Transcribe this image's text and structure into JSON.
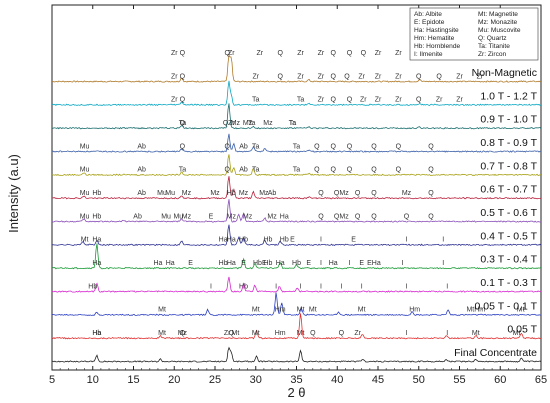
{
  "chart_data": {
    "type": "line",
    "xlabel": "2 θ",
    "ylabel": "Intensity (a.u)",
    "xlim": [
      5,
      65
    ],
    "x_ticks": [
      5,
      10,
      15,
      20,
      25,
      30,
      35,
      40,
      45,
      50,
      55,
      60,
      65
    ],
    "grid": false,
    "legend_position": "top-right",
    "legend": [
      "Ab: Albite",
      "E: Epidote",
      "Ha: Hastingsite",
      "Hm: Hematite",
      "Hb: Hornblende",
      "I: Ilmenite",
      "Mt: Magnetite",
      "Mz: Monazite",
      "Mu: Muscovite",
      "Q: Quartz",
      "Ta: Titanite",
      "Zr: Zircon"
    ],
    "series": [
      {
        "name": "Non-Magnetic",
        "color": "#b07a2a",
        "peaks": [
          [
            20.9,
            0.15
          ],
          [
            26.7,
            1.0
          ],
          [
            27.0,
            0.9
          ],
          [
            36.5,
            0.07
          ],
          [
            50.1,
            0.08
          ]
        ],
        "labels": [
          [
            20.0,
            "Zr"
          ],
          [
            21.0,
            "Q"
          ],
          [
            26.5,
            "Q"
          ],
          [
            27.0,
            "Zr"
          ],
          [
            30.5,
            "Zr"
          ],
          [
            33.0,
            "Q"
          ],
          [
            35.5,
            "Zr"
          ],
          [
            38.0,
            "Zr"
          ],
          [
            39.5,
            "Q"
          ],
          [
            41.5,
            "Q"
          ],
          [
            43.2,
            "Q"
          ],
          [
            45.0,
            "Zr"
          ],
          [
            47.5,
            "Zr"
          ],
          [
            50.0,
            "Q"
          ],
          [
            52.5,
            "Q"
          ],
          [
            55.0,
            "Zr"
          ]
        ]
      },
      {
        "name": "1.0 T - 1.2 T",
        "color": "#0aa7c2",
        "peaks": [
          [
            20.9,
            0.12
          ],
          [
            26.7,
            0.95
          ],
          [
            27.0,
            0.35
          ],
          [
            36.5,
            0.05
          ],
          [
            50.1,
            0.06
          ]
        ],
        "labels": [
          [
            20.0,
            "Zr"
          ],
          [
            21.0,
            "Q"
          ],
          [
            30.0,
            "Zr"
          ],
          [
            33.0,
            "Q"
          ],
          [
            35.5,
            "Zr"
          ],
          [
            38.0,
            "Zr"
          ],
          [
            39.5,
            "Q"
          ],
          [
            41.2,
            "Q"
          ],
          [
            43.0,
            "Zr"
          ],
          [
            45.0,
            "Zr"
          ],
          [
            47.5,
            "Zr"
          ],
          [
            50.0,
            "Q"
          ],
          [
            52.5,
            "Q"
          ],
          [
            55.0,
            "Zr"
          ],
          [
            57.5,
            "Zr"
          ]
        ]
      },
      {
        "name": "0.9 T - 1.0 T",
        "color": "#1a6e6e",
        "peaks": [
          [
            20.9,
            0.12
          ],
          [
            26.7,
            1.0
          ],
          [
            29.7,
            0.08
          ],
          [
            36.5,
            0.05
          ],
          [
            50.1,
            0.06
          ]
        ],
        "labels": [
          [
            20.0,
            "Zr"
          ],
          [
            21.0,
            "Q"
          ],
          [
            30.0,
            "Ta"
          ],
          [
            35.5,
            "Ta"
          ],
          [
            38.0,
            "Zr"
          ],
          [
            39.5,
            "Q"
          ],
          [
            41.5,
            "Q"
          ],
          [
            43.2,
            "Zr"
          ],
          [
            45.0,
            "Zr"
          ],
          [
            47.5,
            "Zr"
          ],
          [
            50.0,
            "Q"
          ],
          [
            52.5,
            "Zr"
          ],
          [
            55.0,
            "Zr"
          ]
        ]
      },
      {
        "name": "0.8 T - 0.9 T",
        "color": "#3a5fa8",
        "peaks": [
          [
            20.9,
            0.1
          ],
          [
            26.7,
            0.7
          ],
          [
            27.3,
            0.3
          ],
          [
            29.7,
            0.2
          ],
          [
            31.1,
            0.12
          ],
          [
            36.5,
            0.05
          ]
        ],
        "labels": [
          [
            21.0,
            "Ta"
          ],
          [
            26.3,
            "Q"
          ],
          [
            27.5,
            "Mz"
          ],
          [
            29.5,
            "Ta"
          ],
          [
            34.5,
            "Ta"
          ],
          [
            21.0,
            "Q"
          ],
          [
            27.0,
            "Zr"
          ],
          [
            29.0,
            "Mz"
          ],
          [
            31.5,
            "Mz"
          ],
          [
            34.5,
            "Ta"
          ]
        ]
      },
      {
        "name": "0.7 T - 0.8 T",
        "color": "#a7a013",
        "peaks": [
          [
            8.9,
            0.08
          ],
          [
            20.9,
            0.12
          ],
          [
            26.7,
            0.85
          ],
          [
            27.3,
            0.3
          ],
          [
            29.7,
            0.25
          ],
          [
            36.5,
            0.05
          ]
        ],
        "labels": [
          [
            9.0,
            "Mu"
          ],
          [
            16.0,
            "Ab"
          ],
          [
            21.0,
            "Q"
          ],
          [
            26.5,
            "Q"
          ],
          [
            28.5,
            "Ab"
          ],
          [
            30.0,
            "Ta"
          ],
          [
            35.0,
            "Ta"
          ],
          [
            37.5,
            "Q"
          ],
          [
            39.5,
            "Q"
          ],
          [
            41.5,
            "Q"
          ],
          [
            44.5,
            "Q"
          ],
          [
            47.5,
            "Q"
          ],
          [
            51.5,
            "Q"
          ]
        ]
      },
      {
        "name": "0.6 T - 0.7 T",
        "color": "#b8213c",
        "peaks": [
          [
            8.9,
            0.08
          ],
          [
            20.9,
            0.12
          ],
          [
            26.7,
            0.9
          ],
          [
            27.3,
            0.35
          ],
          [
            29.7,
            0.25
          ],
          [
            36.5,
            0.05
          ]
        ],
        "labels": [
          [
            9.0,
            "Mu"
          ],
          [
            16.0,
            "Ab"
          ],
          [
            21.0,
            "Ta"
          ],
          [
            26.5,
            "Q"
          ],
          [
            28.5,
            "Ab"
          ],
          [
            30.0,
            "Ta"
          ],
          [
            35.0,
            "Ta"
          ],
          [
            37.5,
            "Q"
          ],
          [
            39.5,
            "Q"
          ],
          [
            41.5,
            "Q"
          ],
          [
            44.5,
            "Q"
          ],
          [
            47.5,
            "Q"
          ],
          [
            51.5,
            "Q"
          ]
        ]
      },
      {
        "name": "0.5 T - 0.6 T",
        "color": "#8a4fb8",
        "peaks": [
          [
            8.9,
            0.1
          ],
          [
            13.8,
            0.06
          ],
          [
            20.9,
            0.1
          ],
          [
            26.7,
            0.9
          ],
          [
            27.9,
            0.3
          ],
          [
            28.5,
            0.35
          ],
          [
            31.1,
            0.15
          ]
        ],
        "labels": [
          [
            9.0,
            "Mu"
          ],
          [
            10.5,
            "Hb"
          ],
          [
            16.0,
            "Ab"
          ],
          [
            18.5,
            "Mu"
          ],
          [
            19.5,
            "Mu"
          ],
          [
            21.5,
            "Mz"
          ],
          [
            25.0,
            "Mz"
          ],
          [
            27.0,
            "Hb"
          ],
          [
            28.5,
            "Mz"
          ],
          [
            31.0,
            "Mz"
          ],
          [
            32.0,
            "Ab"
          ],
          [
            38.0,
            "Q"
          ],
          [
            40.5,
            "QMz"
          ],
          [
            42.5,
            "Q"
          ],
          [
            44.5,
            "Q"
          ],
          [
            48.5,
            "Mz"
          ],
          [
            51.5,
            "Q"
          ]
        ]
      },
      {
        "name": "0.4 T - 0.5 T",
        "color": "#2e3192",
        "peaks": [
          [
            8.8,
            0.15
          ],
          [
            10.5,
            0.2
          ],
          [
            20.9,
            0.15
          ],
          [
            26.7,
            0.8
          ],
          [
            27.9,
            0.3
          ],
          [
            28.5,
            0.3
          ],
          [
            31.1,
            0.2
          ],
          [
            33.0,
            0.15
          ]
        ],
        "labels": [
          [
            9.0,
            "Mu"
          ],
          [
            10.5,
            "Hb"
          ],
          [
            15.5,
            "Ab"
          ],
          [
            19.0,
            "Mu"
          ],
          [
            20.5,
            "Mu"
          ],
          [
            21.5,
            "Mz"
          ],
          [
            24.5,
            "E"
          ],
          [
            27.0,
            "Mz"
          ],
          [
            29.0,
            "Mz"
          ],
          [
            32.0,
            "Mz"
          ],
          [
            33.5,
            "Ha"
          ],
          [
            38.0,
            "Q"
          ],
          [
            40.5,
            "QMz"
          ],
          [
            42.5,
            "Q"
          ],
          [
            44.5,
            "Q"
          ],
          [
            48.5,
            "Q"
          ],
          [
            51.5,
            "Q"
          ]
        ]
      },
      {
        "name": "0.3 T - 0.4 T",
        "color": "#1a9b36",
        "peaks": [
          [
            10.5,
            1.0
          ],
          [
            28.5,
            0.35
          ],
          [
            29.9,
            0.2
          ],
          [
            33.0,
            0.25
          ],
          [
            35.0,
            0.15
          ]
        ],
        "labels": [
          [
            9.0,
            "Mt"
          ],
          [
            10.5,
            "Ha"
          ],
          [
            26.0,
            "Ha"
          ],
          [
            27.0,
            "Ha"
          ],
          [
            28.5,
            "Hb"
          ],
          [
            31.5,
            "Hb"
          ],
          [
            33.5,
            "Hb"
          ],
          [
            34.5,
            "E"
          ],
          [
            38.0,
            "I"
          ],
          [
            42.0,
            "E"
          ],
          [
            48.5,
            "I"
          ],
          [
            53.0,
            "I"
          ]
        ]
      },
      {
        "name": "0.1 T - 0.3 T",
        "color": "#d62ad0",
        "peaks": [
          [
            10.5,
            0.35
          ],
          [
            26.7,
            0.6
          ],
          [
            28.5,
            0.3
          ],
          [
            29.9,
            0.25
          ],
          [
            32.9,
            0.2
          ],
          [
            35.1,
            0.15
          ]
        ],
        "labels": [
          [
            10.5,
            "Ha"
          ],
          [
            18.0,
            "Ha"
          ],
          [
            19.5,
            "Ha"
          ],
          [
            22.0,
            "E"
          ],
          [
            26.0,
            "Hb"
          ],
          [
            27.0,
            "Ha"
          ],
          [
            28.5,
            "E"
          ],
          [
            30.5,
            "HbE"
          ],
          [
            31.5,
            "Hb"
          ],
          [
            33.0,
            "Ha"
          ],
          [
            35.0,
            "Hb"
          ],
          [
            36.5,
            "E"
          ],
          [
            38.0,
            "I"
          ],
          [
            39.5,
            "Ha"
          ],
          [
            41.5,
            "I"
          ],
          [
            43.0,
            "E"
          ],
          [
            44.5,
            "EHa"
          ],
          [
            48.0,
            "I"
          ],
          [
            53.0,
            "I"
          ]
        ]
      },
      {
        "name": "0.05 T - 0.1 T",
        "color": "#2b3fbf",
        "peaks": [
          [
            10.5,
            0.1
          ],
          [
            24.1,
            0.2
          ],
          [
            32.5,
            0.9
          ],
          [
            33.2,
            0.5
          ],
          [
            35.6,
            0.25
          ],
          [
            40.2,
            0.1
          ],
          [
            49.2,
            0.15
          ],
          [
            53.6,
            0.2
          ]
        ],
        "labels": [
          [
            10.0,
            "Hb"
          ],
          [
            24.5,
            "I"
          ],
          [
            28.5,
            "Hb"
          ],
          [
            32.5,
            "I"
          ],
          [
            35.5,
            "I"
          ],
          [
            38.0,
            "I"
          ],
          [
            40.5,
            "I"
          ],
          [
            43.0,
            "I"
          ],
          [
            48.5,
            "I"
          ],
          [
            53.5,
            "I"
          ]
        ]
      },
      {
        "name": "0.05 T",
        "color": "#e03030",
        "peaks": [
          [
            18.3,
            0.1
          ],
          [
            30.1,
            0.3
          ],
          [
            35.5,
            1.0
          ],
          [
            43.1,
            0.15
          ],
          [
            53.4,
            0.08
          ],
          [
            57.0,
            0.12
          ],
          [
            62.6,
            0.2
          ]
        ],
        "labels": [
          [
            18.5,
            "Mt"
          ],
          [
            30.0,
            "Mt"
          ],
          [
            33.0,
            "Hm"
          ],
          [
            35.5,
            "Mt"
          ],
          [
            37.0,
            "Mt"
          ],
          [
            43.0,
            "Mt"
          ],
          [
            49.5,
            "Hm"
          ],
          [
            57.0,
            "MtHm"
          ],
          [
            62.5,
            "Mt"
          ]
        ]
      },
      {
        "name": "Final Concentrate",
        "color": "#222222",
        "peaks": [
          [
            10.5,
            0.25
          ],
          [
            18.3,
            0.1
          ],
          [
            26.7,
            0.55
          ],
          [
            27.0,
            0.35
          ],
          [
            30.1,
            0.2
          ],
          [
            35.5,
            0.45
          ],
          [
            43.1,
            0.1
          ],
          [
            53.4,
            0.08
          ],
          [
            57.0,
            0.1
          ],
          [
            62.6,
            0.15
          ]
        ],
        "labels": [
          [
            10.5,
            "Hb"
          ],
          [
            10.5,
            "Ha"
          ],
          [
            18.5,
            "Mt"
          ],
          [
            21.0,
            "Q"
          ],
          [
            21.0,
            "Mz"
          ],
          [
            26.5,
            "Zr"
          ],
          [
            27.0,
            "Q"
          ],
          [
            27.5,
            "Mt"
          ],
          [
            30.0,
            "Mt"
          ],
          [
            33.0,
            "Hm"
          ],
          [
            35.5,
            "Mt"
          ],
          [
            37.0,
            "Q"
          ],
          [
            40.5,
            "Q"
          ],
          [
            42.5,
            "Zr"
          ],
          [
            48.5,
            "I"
          ],
          [
            53.5,
            "I"
          ],
          [
            57.0,
            "Mt"
          ],
          [
            62.0,
            "Mt"
          ]
        ]
      }
    ]
  }
}
